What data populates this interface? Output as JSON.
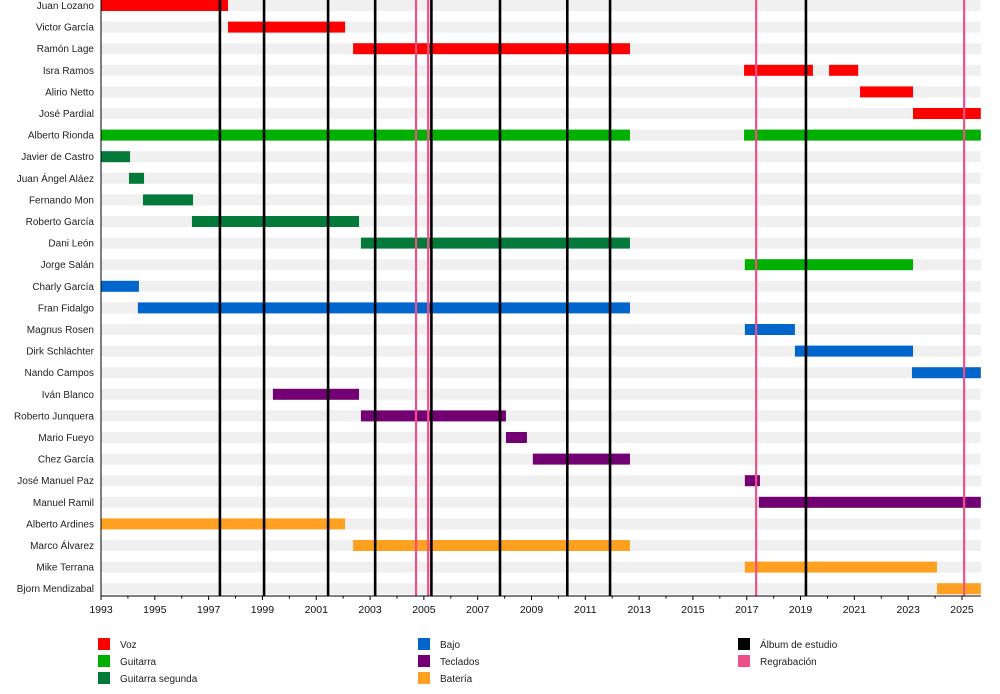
{
  "chart_data": {
    "type": "timeline",
    "title": "",
    "xlabel": "",
    "ylabel": "",
    "xlim": [
      1993,
      2025.7
    ],
    "x_ticks": [
      "1993",
      "1995",
      "1997",
      "1999",
      "2001",
      "2003",
      "2005",
      "2007",
      "2009",
      "2011",
      "2013",
      "2015",
      "2017",
      "2019",
      "2021",
      "2023",
      "2025"
    ],
    "colors": {
      "Voz": "#ff0000",
      "Guitarra": "#00b000",
      "Guitarra segunda": "#047a3a",
      "Bajo": "#0066cc",
      "Teclados": "#730073",
      "Batería": "#ffa020",
      "Álbum de estudio": "#000000",
      "Regrabación": "#f0508a"
    },
    "members": [
      {
        "name": "Juan Lozano",
        "periods": [
          {
            "role": "Voz",
            "start": 1993.0,
            "end": 1997.72
          }
        ]
      },
      {
        "name": "Victor García",
        "periods": [
          {
            "role": "Voz",
            "start": 1997.72,
            "end": 2002.07
          }
        ]
      },
      {
        "name": "Ramón Lage",
        "periods": [
          {
            "role": "Voz",
            "start": 2002.37,
            "end": 2012.66
          }
        ]
      },
      {
        "name": "Isra Ramos",
        "periods": [
          {
            "role": "Voz",
            "start": 2016.9,
            "end": 2019.46
          },
          {
            "role": "Voz",
            "start": 2020.06,
            "end": 2021.14
          }
        ]
      },
      {
        "name": "Alirio Netto",
        "periods": [
          {
            "role": "Voz",
            "start": 2021.21,
            "end": 2023.18
          }
        ]
      },
      {
        "name": "José Pardial",
        "periods": [
          {
            "role": "Voz",
            "start": 2023.18,
            "end": 2025.7
          }
        ]
      },
      {
        "name": "Alberto Rionda",
        "periods": [
          {
            "role": "Guitarra",
            "start": 1993.0,
            "end": 2012.66
          },
          {
            "role": "Guitarra",
            "start": 2016.9,
            "end": 2025.7
          }
        ]
      },
      {
        "name": "Javier de Castro",
        "periods": [
          {
            "role": "Guitarra segunda",
            "start": 1993.0,
            "end": 1994.08
          }
        ]
      },
      {
        "name": "Juan Ángel Aláez",
        "periods": [
          {
            "role": "Guitarra segunda",
            "start": 1994.04,
            "end": 1994.6
          }
        ]
      },
      {
        "name": "Fernando Mon",
        "periods": [
          {
            "role": "Guitarra segunda",
            "start": 1994.56,
            "end": 1996.42
          }
        ]
      },
      {
        "name": "Roberto García",
        "periods": [
          {
            "role": "Guitarra segunda",
            "start": 1996.38,
            "end": 2002.59
          }
        ]
      },
      {
        "name": "Dani León",
        "periods": [
          {
            "role": "Guitarra segunda",
            "start": 2002.66,
            "end": 2012.66
          }
        ]
      },
      {
        "name": "Jorge Salán",
        "periods": [
          {
            "role": "Guitarra",
            "start": 2016.93,
            "end": 2023.18
          }
        ]
      },
      {
        "name": "Charly García",
        "periods": [
          {
            "role": "Bajo",
            "start": 1993.0,
            "end": 1994.41
          }
        ]
      },
      {
        "name": "Fran Fidalgo",
        "periods": [
          {
            "role": "Bajo",
            "start": 1994.37,
            "end": 2012.66
          }
        ]
      },
      {
        "name": "Magnus Rosen",
        "periods": [
          {
            "role": "Bajo",
            "start": 2016.93,
            "end": 2018.79
          }
        ]
      },
      {
        "name": "Dirk Schlächter",
        "periods": [
          {
            "role": "Bajo",
            "start": 2018.79,
            "end": 2023.18
          }
        ]
      },
      {
        "name": "Nando Campos",
        "periods": [
          {
            "role": "Bajo",
            "start": 2023.14,
            "end": 2025.7
          }
        ]
      },
      {
        "name": "Iván Blanco",
        "periods": [
          {
            "role": "Teclados",
            "start": 1999.39,
            "end": 2002.59
          }
        ]
      },
      {
        "name": "Roberto Junquera",
        "periods": [
          {
            "role": "Teclados",
            "start": 2002.66,
            "end": 2008.05
          }
        ]
      },
      {
        "name": "Mario Fueyo",
        "periods": [
          {
            "role": "Teclados",
            "start": 2008.05,
            "end": 2008.83
          }
        ]
      },
      {
        "name": "Chez García",
        "periods": [
          {
            "role": "Teclados",
            "start": 2009.05,
            "end": 2012.66
          }
        ]
      },
      {
        "name": "José Manuel Paz",
        "periods": [
          {
            "role": "Teclados",
            "start": 2016.93,
            "end": 2017.49
          }
        ]
      },
      {
        "name": "Manuel Ramil",
        "periods": [
          {
            "role": "Teclados",
            "start": 2017.45,
            "end": 2025.7
          }
        ]
      },
      {
        "name": "Alberto Ardines",
        "periods": [
          {
            "role": "Batería",
            "start": 1993.0,
            "end": 2002.07
          }
        ]
      },
      {
        "name": "Marco Álvarez",
        "periods": [
          {
            "role": "Batería",
            "start": 2002.37,
            "end": 2012.66
          }
        ]
      },
      {
        "name": "Mike Terrana",
        "periods": [
          {
            "role": "Batería",
            "start": 2016.93,
            "end": 2024.07
          }
        ]
      },
      {
        "name": "Bjorn Mendizabal",
        "periods": [
          {
            "role": "Batería",
            "start": 2024.07,
            "end": 2025.7
          }
        ]
      }
    ],
    "events": [
      {
        "type": "Álbum de estudio",
        "year": 1997.42
      },
      {
        "type": "Álbum de estudio",
        "year": 1999.06
      },
      {
        "type": "Álbum de estudio",
        "year": 2001.44
      },
      {
        "type": "Álbum de estudio",
        "year": 2003.19
      },
      {
        "type": "Regrabación",
        "year": 2004.71
      },
      {
        "type": "Regrabación",
        "year": 2005.16
      },
      {
        "type": "Álbum de estudio",
        "year": 2005.28
      },
      {
        "type": "Álbum de estudio",
        "year": 2007.83
      },
      {
        "type": "Álbum de estudio",
        "year": 2010.33
      },
      {
        "type": "Álbum de estudio",
        "year": 2011.92
      },
      {
        "type": "Regrabación",
        "year": 2017.35
      },
      {
        "type": "Álbum de estudio",
        "year": 2019.2
      },
      {
        "type": "Regrabación",
        "year": 2025.08
      }
    ],
    "legend": {
      "placement": "bottom",
      "columns": [
        [
          "Voz",
          "Guitarra",
          "Guitarra segunda"
        ],
        [
          "Bajo",
          "Teclados",
          "Batería"
        ],
        [
          "Álbum de estudio",
          "Regrabación"
        ]
      ]
    }
  }
}
